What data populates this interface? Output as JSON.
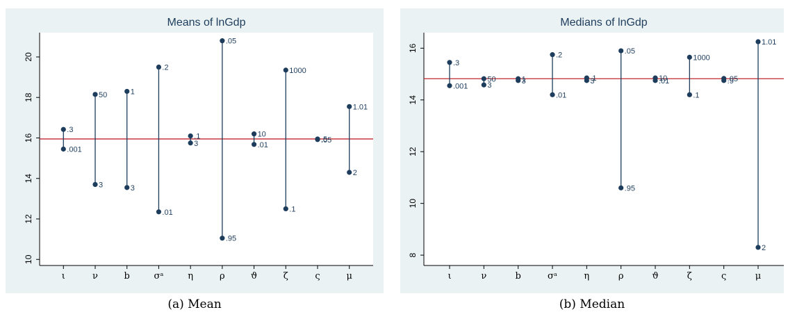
{
  "chart_data": [
    {
      "type": "dot",
      "title": "Means of lnGdp",
      "caption": "(a) Mean",
      "ylim": [
        9.7,
        21.2
      ],
      "yticks": [
        10,
        12,
        14,
        16,
        18,
        20
      ],
      "reference_line": 15.95,
      "reference_color": "#c0262d",
      "point_color": "#1e3d5c",
      "categories": [
        "ι",
        "ν",
        "b",
        "σᵃ",
        "η",
        "ρ",
        "ϑ",
        "ζ",
        "ς",
        "μ"
      ],
      "points": [
        {
          "cat": 0,
          "value": 16.42,
          "label": ".3"
        },
        {
          "cat": 0,
          "value": 15.45,
          "label": ".001"
        },
        {
          "cat": 1,
          "value": 18.15,
          "label": "50"
        },
        {
          "cat": 1,
          "value": 13.7,
          "label": "3"
        },
        {
          "cat": 2,
          "value": 18.3,
          "label": "1"
        },
        {
          "cat": 2,
          "value": 13.55,
          "label": "3"
        },
        {
          "cat": 3,
          "value": 19.5,
          "label": ".2"
        },
        {
          "cat": 3,
          "value": 12.35,
          "label": ".01"
        },
        {
          "cat": 4,
          "value": 16.1,
          "label": ".1"
        },
        {
          "cat": 4,
          "value": 15.75,
          "label": "3"
        },
        {
          "cat": 5,
          "value": 20.8,
          "label": ".05"
        },
        {
          "cat": 5,
          "value": 11.05,
          "label": ".95"
        },
        {
          "cat": 6,
          "value": 16.2,
          "label": "10"
        },
        {
          "cat": 6,
          "value": 15.68,
          "label": ".01"
        },
        {
          "cat": 7,
          "value": 19.35,
          "label": "1000"
        },
        {
          "cat": 7,
          "value": 12.5,
          "label": ".1"
        },
        {
          "cat": 8,
          "value": 15.95,
          "label": ".5"
        },
        {
          "cat": 8,
          "value": 15.92,
          "label": ".05"
        },
        {
          "cat": 9,
          "value": 17.55,
          "label": "1.01"
        },
        {
          "cat": 9,
          "value": 14.3,
          "label": "2"
        }
      ]
    },
    {
      "type": "dot",
      "title": "Medians of lnGdp",
      "caption": "(b) Median",
      "ylim": [
        7.6,
        16.6
      ],
      "yticks": [
        8,
        10,
        12,
        14,
        16
      ],
      "reference_line": 14.82,
      "reference_color": "#c0262d",
      "point_color": "#1e3d5c",
      "categories": [
        "ι",
        "ν",
        "b",
        "σᵃ",
        "η",
        "ρ",
        "ϑ",
        "ζ",
        "ς",
        "μ"
      ],
      "points": [
        {
          "cat": 0,
          "value": 15.45,
          "label": ".3"
        },
        {
          "cat": 0,
          "value": 14.55,
          "label": ".001"
        },
        {
          "cat": 1,
          "value": 14.82,
          "label": "50"
        },
        {
          "cat": 1,
          "value": 14.58,
          "label": "3"
        },
        {
          "cat": 2,
          "value": 14.82,
          "label": "1"
        },
        {
          "cat": 2,
          "value": 14.75,
          "label": "3"
        },
        {
          "cat": 3,
          "value": 15.75,
          "label": ".2"
        },
        {
          "cat": 3,
          "value": 14.2,
          "label": ".01"
        },
        {
          "cat": 4,
          "value": 14.85,
          "label": ".1"
        },
        {
          "cat": 4,
          "value": 14.75,
          "label": "3"
        },
        {
          "cat": 5,
          "value": 15.9,
          "label": ".05"
        },
        {
          "cat": 5,
          "value": 10.6,
          "label": ".95"
        },
        {
          "cat": 6,
          "value": 14.85,
          "label": "10"
        },
        {
          "cat": 6,
          "value": 14.75,
          "label": ".01"
        },
        {
          "cat": 7,
          "value": 15.65,
          "label": "1000"
        },
        {
          "cat": 7,
          "value": 14.2,
          "label": ".1"
        },
        {
          "cat": 8,
          "value": 14.83,
          "label": ".05"
        },
        {
          "cat": 8,
          "value": 14.75,
          "label": ".9"
        },
        {
          "cat": 9,
          "value": 16.25,
          "label": "1.01"
        },
        {
          "cat": 9,
          "value": 8.3,
          "label": "2"
        }
      ]
    }
  ]
}
